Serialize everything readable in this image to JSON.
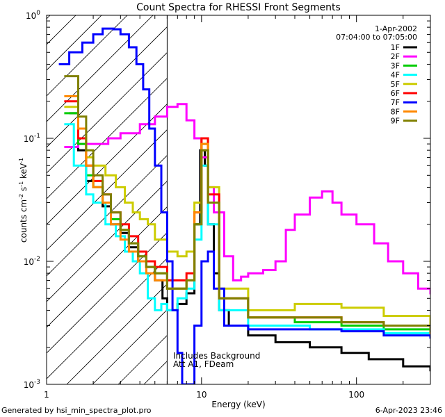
{
  "footer": {
    "generated_by": "Generated by hsi_min_spectra_plot.pro",
    "timestamp": "6-Apr-2023 23:46"
  },
  "chart_data": {
    "type": "line",
    "title": "Count Spectra for RHESSI Front Segments",
    "xlabel": "Energy (keV)",
    "ylabel": "counts cm^-2 s^-1 keV^-1",
    "xscale": "log",
    "yscale": "log",
    "xlim": [
      1,
      300
    ],
    "ylim": [
      0.001,
      1
    ],
    "x_ticks": [
      {
        "value": 1,
        "label": "1"
      },
      {
        "value": 10,
        "label": "10"
      },
      {
        "value": 100,
        "label": "100"
      }
    ],
    "y_ticks": [
      {
        "value": 1,
        "label": "10^0"
      },
      {
        "value": 0.1,
        "label": "10^-1"
      },
      {
        "value": 0.01,
        "label": "10^-2"
      },
      {
        "value": 0.001,
        "label": "10^-3"
      }
    ],
    "date": "1-Apr-2002",
    "time_range": "07:04:00 to 07:05:00",
    "attenuator_boundary_keV": 6,
    "annotation_lines": [
      "Includes Background",
      "Att A1, FDeam"
    ],
    "legend_position": "top-right",
    "series": [
      {
        "name": "1F",
        "color": "#000000",
        "points": [
          [
            1.4,
            0.16
          ],
          [
            1.6,
            0.08
          ],
          [
            1.8,
            0.045
          ],
          [
            2.0,
            0.04
          ],
          [
            2.3,
            0.028
          ],
          [
            2.6,
            0.02
          ],
          [
            3.0,
            0.017
          ],
          [
            3.4,
            0.013
          ],
          [
            3.9,
            0.01
          ],
          [
            4.4,
            0.009
          ],
          [
            5.0,
            0.007
          ],
          [
            5.6,
            0.005
          ],
          [
            6.0,
            0.004
          ],
          [
            7.0,
            0.0045
          ],
          [
            8.0,
            0.0055
          ],
          [
            9.0,
            0.02
          ],
          [
            9.8,
            0.08
          ],
          [
            10.5,
            0.06
          ],
          [
            11.0,
            0.02
          ],
          [
            12.0,
            0.008
          ],
          [
            13.0,
            0.004
          ],
          [
            15.0,
            0.003
          ],
          [
            20.0,
            0.0025
          ],
          [
            30.0,
            0.0022
          ],
          [
            50.0,
            0.002
          ],
          [
            80.0,
            0.0018
          ],
          [
            120.0,
            0.0016
          ],
          [
            200.0,
            0.0014
          ],
          [
            300.0,
            0.0013
          ]
        ]
      },
      {
        "name": "2F",
        "color": "#ff00ff",
        "points": [
          [
            1.3,
            0.085
          ],
          [
            1.6,
            0.09
          ],
          [
            2.0,
            0.09
          ],
          [
            2.5,
            0.1
          ],
          [
            3.0,
            0.11
          ],
          [
            4.0,
            0.13
          ],
          [
            5.0,
            0.15
          ],
          [
            6.0,
            0.18
          ],
          [
            7.0,
            0.19
          ],
          [
            8.0,
            0.14
          ],
          [
            9.0,
            0.1
          ],
          [
            10.0,
            0.07
          ],
          [
            11.0,
            0.04
          ],
          [
            12.0,
            0.025
          ],
          [
            14.0,
            0.011
          ],
          [
            16.0,
            0.007
          ],
          [
            18.0,
            0.0075
          ],
          [
            20.0,
            0.008
          ],
          [
            25.0,
            0.0085
          ],
          [
            30.0,
            0.01
          ],
          [
            35.0,
            0.018
          ],
          [
            40.0,
            0.024
          ],
          [
            50.0,
            0.033
          ],
          [
            60.0,
            0.037
          ],
          [
            70.0,
            0.03
          ],
          [
            80.0,
            0.024
          ],
          [
            100.0,
            0.02
          ],
          [
            130.0,
            0.014
          ],
          [
            160.0,
            0.01
          ],
          [
            200.0,
            0.008
          ],
          [
            250.0,
            0.006
          ],
          [
            300.0,
            0.0055
          ]
        ]
      },
      {
        "name": "3F",
        "color": "#00cc00",
        "points": [
          [
            1.3,
            0.16
          ],
          [
            1.6,
            0.09
          ],
          [
            1.8,
            0.05
          ],
          [
            2.0,
            0.04
          ],
          [
            2.3,
            0.03
          ],
          [
            2.6,
            0.022
          ],
          [
            3.0,
            0.018
          ],
          [
            3.4,
            0.014
          ],
          [
            3.9,
            0.011
          ],
          [
            4.4,
            0.009
          ],
          [
            5.0,
            0.008
          ],
          [
            6.0,
            0.006
          ],
          [
            7.0,
            0.006
          ],
          [
            8.0,
            0.007
          ],
          [
            9.0,
            0.02
          ],
          [
            10.0,
            0.09
          ],
          [
            11.0,
            0.03
          ],
          [
            13.0,
            0.005
          ],
          [
            20.0,
            0.0035
          ],
          [
            40.0,
            0.0032
          ],
          [
            80.0,
            0.003
          ],
          [
            150.0,
            0.0028
          ],
          [
            300.0,
            0.0025
          ]
        ]
      },
      {
        "name": "4F",
        "color": "#00ffff",
        "points": [
          [
            1.3,
            0.13
          ],
          [
            1.5,
            0.06
          ],
          [
            1.8,
            0.035
          ],
          [
            2.0,
            0.03
          ],
          [
            2.4,
            0.02
          ],
          [
            2.8,
            0.016
          ],
          [
            3.2,
            0.012
          ],
          [
            3.6,
            0.01
          ],
          [
            4.0,
            0.008
          ],
          [
            4.5,
            0.005
          ],
          [
            5.0,
            0.004
          ],
          [
            5.5,
            0.0045
          ],
          [
            6.0,
            0.004
          ],
          [
            7.0,
            0.005
          ],
          [
            8.0,
            0.006
          ],
          [
            9.0,
            0.015
          ],
          [
            10.0,
            0.06
          ],
          [
            11.0,
            0.02
          ],
          [
            13.0,
            0.004
          ],
          [
            20.0,
            0.003
          ],
          [
            50.0,
            0.0028
          ],
          [
            150.0,
            0.0026
          ],
          [
            300.0,
            0.0024
          ]
        ]
      },
      {
        "name": "5F",
        "color": "#cccc00",
        "points": [
          [
            1.3,
            0.18
          ],
          [
            1.6,
            0.1
          ],
          [
            1.8,
            0.07
          ],
          [
            2.0,
            0.06
          ],
          [
            2.4,
            0.05
          ],
          [
            2.8,
            0.04
          ],
          [
            3.2,
            0.03
          ],
          [
            3.6,
            0.025
          ],
          [
            4.0,
            0.022
          ],
          [
            4.5,
            0.02
          ],
          [
            5.0,
            0.015
          ],
          [
            6.0,
            0.012
          ],
          [
            7.0,
            0.011
          ],
          [
            8.0,
            0.012
          ],
          [
            9.0,
            0.03
          ],
          [
            10.0,
            0.1
          ],
          [
            11.0,
            0.04
          ],
          [
            13.0,
            0.006
          ],
          [
            20.0,
            0.004
          ],
          [
            40.0,
            0.0045
          ],
          [
            80.0,
            0.0042
          ],
          [
            150.0,
            0.0036
          ],
          [
            300.0,
            0.003
          ]
        ]
      },
      {
        "name": "6F",
        "color": "#ff0000",
        "points": [
          [
            1.3,
            0.2
          ],
          [
            1.6,
            0.1
          ],
          [
            1.8,
            0.06
          ],
          [
            2.0,
            0.045
          ],
          [
            2.3,
            0.035
          ],
          [
            2.6,
            0.025
          ],
          [
            3.0,
            0.02
          ],
          [
            3.4,
            0.016
          ],
          [
            3.9,
            0.012
          ],
          [
            4.4,
            0.01
          ],
          [
            5.0,
            0.009
          ],
          [
            6.0,
            0.007
          ],
          [
            7.0,
            0.007
          ],
          [
            8.0,
            0.008
          ],
          [
            9.0,
            0.025
          ],
          [
            10.0,
            0.1
          ],
          [
            11.0,
            0.035
          ],
          [
            13.0,
            0.005
          ],
          [
            20.0,
            0.0035
          ],
          [
            40.0,
            0.0035
          ],
          [
            80.0,
            0.0032
          ],
          [
            150.0,
            0.003
          ],
          [
            300.0,
            0.0027
          ]
        ]
      },
      {
        "name": "7F",
        "color": "#0000ff",
        "points": [
          [
            1.2,
            0.4
          ],
          [
            1.4,
            0.5
          ],
          [
            1.7,
            0.6
          ],
          [
            2.0,
            0.7
          ],
          [
            2.3,
            0.78
          ],
          [
            2.7,
            0.77
          ],
          [
            3.0,
            0.7
          ],
          [
            3.4,
            0.55
          ],
          [
            3.8,
            0.4
          ],
          [
            4.2,
            0.25
          ],
          [
            4.6,
            0.12
          ],
          [
            5.0,
            0.06
          ],
          [
            5.5,
            0.025
          ],
          [
            6.0,
            0.01
          ],
          [
            6.5,
            0.004
          ],
          [
            7.0,
            0.0018
          ],
          [
            7.5,
            0.001
          ],
          [
            8.0,
            0.001
          ],
          [
            9.0,
            0.003
          ],
          [
            10.0,
            0.01
          ],
          [
            11.0,
            0.012
          ],
          [
            12.0,
            0.006
          ],
          [
            14.0,
            0.003
          ],
          [
            20.0,
            0.0028
          ],
          [
            40.0,
            0.0028
          ],
          [
            80.0,
            0.0027
          ],
          [
            150.0,
            0.0025
          ],
          [
            300.0,
            0.0024
          ]
        ]
      },
      {
        "name": "8F",
        "color": "#ff8800",
        "points": [
          [
            1.3,
            0.22
          ],
          [
            1.6,
            0.12
          ],
          [
            1.8,
            0.06
          ],
          [
            2.0,
            0.04
          ],
          [
            2.3,
            0.03
          ],
          [
            2.6,
            0.02
          ],
          [
            3.0,
            0.015
          ],
          [
            3.4,
            0.012
          ],
          [
            3.9,
            0.01
          ],
          [
            4.4,
            0.008
          ],
          [
            5.0,
            0.007
          ],
          [
            6.0,
            0.006
          ],
          [
            7.0,
            0.006
          ],
          [
            8.0,
            0.007
          ],
          [
            9.0,
            0.025
          ],
          [
            10.0,
            0.09
          ],
          [
            11.0,
            0.03
          ],
          [
            13.0,
            0.005
          ],
          [
            20.0,
            0.0035
          ],
          [
            40.0,
            0.0035
          ],
          [
            80.0,
            0.0032
          ],
          [
            150.0,
            0.003
          ],
          [
            300.0,
            0.0026
          ]
        ]
      },
      {
        "name": "9F",
        "color": "#808000",
        "points": [
          [
            1.3,
            0.32
          ],
          [
            1.6,
            0.15
          ],
          [
            1.8,
            0.08
          ],
          [
            2.0,
            0.05
          ],
          [
            2.3,
            0.035
          ],
          [
            2.6,
            0.025
          ],
          [
            3.0,
            0.018
          ],
          [
            3.4,
            0.014
          ],
          [
            3.9,
            0.011
          ],
          [
            4.4,
            0.009
          ],
          [
            5.0,
            0.008
          ],
          [
            6.0,
            0.006
          ],
          [
            7.0,
            0.006
          ],
          [
            8.0,
            0.007
          ],
          [
            9.0,
            0.02
          ],
          [
            10.0,
            0.08
          ],
          [
            11.0,
            0.03
          ],
          [
            13.0,
            0.005
          ],
          [
            20.0,
            0.0035
          ],
          [
            40.0,
            0.0035
          ],
          [
            80.0,
            0.0032
          ],
          [
            150.0,
            0.003
          ],
          [
            300.0,
            0.0027
          ]
        ]
      }
    ]
  }
}
